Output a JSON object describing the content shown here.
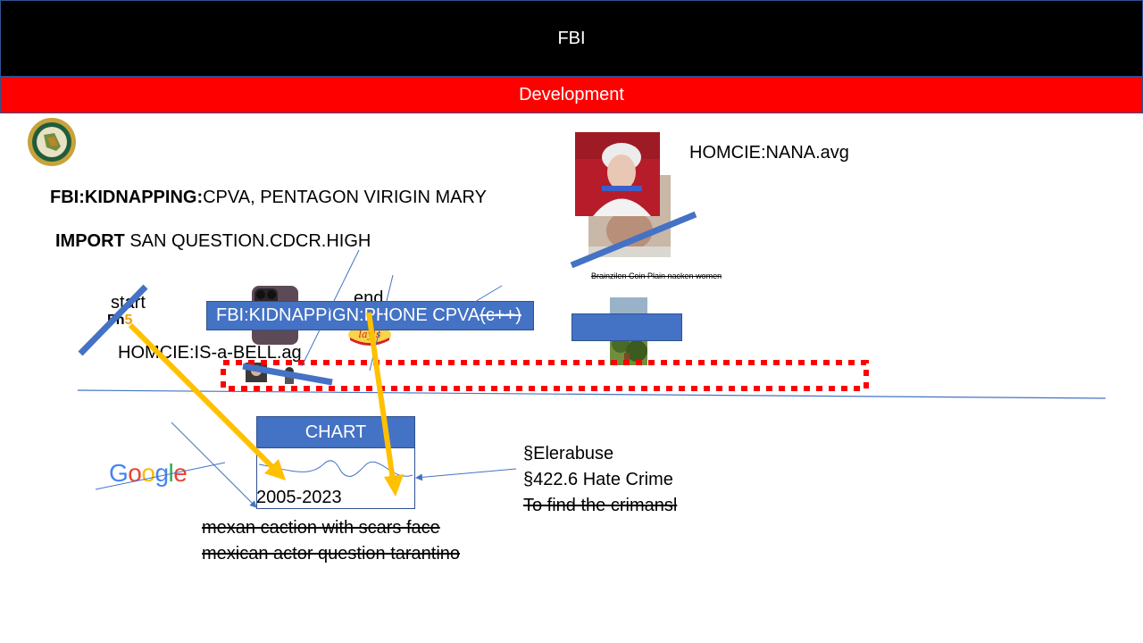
{
  "header": {
    "title": "FBI"
  },
  "subheader": {
    "title": "Development"
  },
  "lines": {
    "kidnapping_bold": "FBI:KIDNAPPING:",
    "kidnapping_rest": "CPVA, PENTAGON VIRIGIN MARY",
    "import_bold": "IMPORT",
    "import_rest": " SAN QUESTION.CDCR.HIGH",
    "homcie_nana": "HOMCIE:NANA.avg",
    "brainzilen": "Brainzilen Coin Plain nacken women",
    "start": "start",
    "end": "end",
    "phone_box": "FBI:KIDNAPPIGN:PHONE CPVA",
    "phone_box_strike": "(c++)",
    "homcie_bell": "HOMCIE:IS-a-BELL.ag",
    "chart_label": "CHART",
    "years": "2005-2023",
    "elderabuse": "§Elerabuse",
    "hate_crime": "§422.6 Hate Crime",
    "find_criminal": "To find the crimansl",
    "mexican_1": "mexan caction with scars face",
    "mexican_2": "mexican actor question tarantino"
  },
  "logos": {
    "google_letters": [
      "G",
      "o",
      "o",
      "g",
      "l",
      "e"
    ],
    "google_colors": [
      "#4285f4",
      "#ea4335",
      "#fbbc05",
      "#4285f4",
      "#34a853",
      "#ea4335"
    ],
    "lays": "lay's"
  },
  "colors": {
    "accent_blue": "#4472c4",
    "arrow_yellow": "#ffc000",
    "header_black": "#000000",
    "header_red": "#ff0000",
    "dotted_red": "#ff0000"
  }
}
